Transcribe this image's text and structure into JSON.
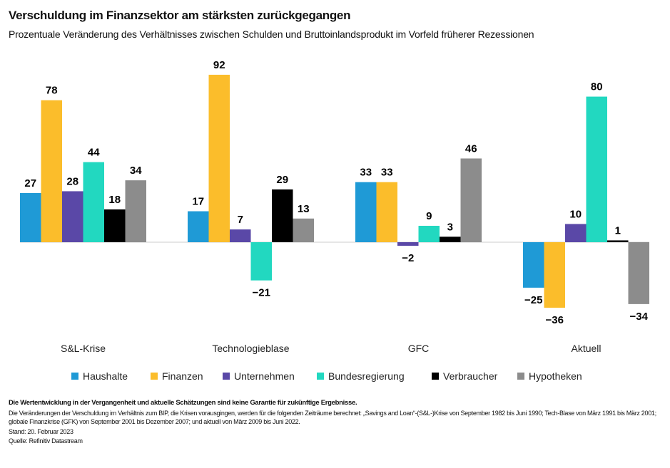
{
  "title": "Verschuldung im Finanzsektor am stärksten zurückgegangen",
  "subtitle": "Prozentuale Veränderung des Verhältnisses zwischen Schulden und Bruttoinlandsprodukt im Vorfeld früherer Rezessionen",
  "chart_data": {
    "type": "bar",
    "categories": [
      "S&L-Krise",
      "Technologieblase",
      "GFC",
      "Aktuell"
    ],
    "series": [
      {
        "name": "Haushalte",
        "color": "#1f9ad6",
        "values": [
          27,
          17,
          33,
          -25
        ]
      },
      {
        "name": "Finanzen",
        "color": "#fbbd2b",
        "values": [
          78,
          92,
          33,
          -36
        ]
      },
      {
        "name": "Unternehmen",
        "color": "#5a48a7",
        "values": [
          28,
          7,
          -2,
          10
        ]
      },
      {
        "name": "Bundesregierung",
        "color": "#22d8c0",
        "values": [
          44,
          -21,
          9,
          80
        ]
      },
      {
        "name": "Verbraucher",
        "color": "#000000",
        "values": [
          18,
          29,
          3,
          1
        ]
      },
      {
        "name": "Hypotheken",
        "color": "#8c8c8c",
        "values": [
          34,
          13,
          46,
          -34
        ]
      }
    ],
    "legend": "bottom",
    "grid": false
  },
  "footer": {
    "disclaimer": "Die Wertentwicklung in der Vergangenheit und aktuelle Schätzungen sind keine Garantie für zukünftige Ergebnisse.",
    "note": "Die Veränderungen der Verschuldung im Verhältnis zum BIP, die Krisen vorausgingen, werden für die folgenden Zeiträume berechnet: „Savings and Loan“-(S&L-)Krise von September 1982 bis Juni 1990; Tech-Blase von März 1991 bis März 2001; globale Finanzkrise (GFK) von September 2001 bis Dezember 2007; und aktuell von März 2009 bis Juni 2022.",
    "stand": "Stand: 20. Februar 2023",
    "source": "Quelle: Refinitiv Datastream"
  }
}
